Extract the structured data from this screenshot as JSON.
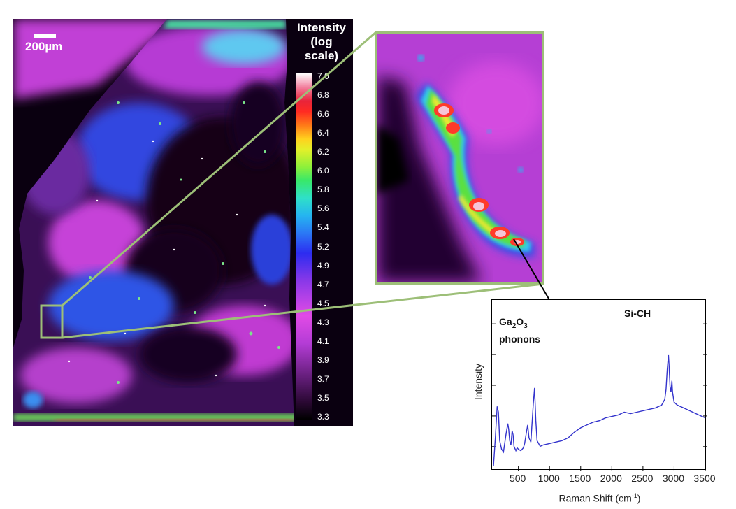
{
  "map": {
    "scalebar_label": "200µm",
    "colorbar": {
      "title_lines": [
        "Intensity",
        "(log",
        "scale)"
      ],
      "ticks": [
        "7.0",
        "6.8",
        "6.6",
        "6.4",
        "6.2",
        "6.0",
        "5.8",
        "5.6",
        "5.4",
        "5.2",
        "4.9",
        "4.7",
        "4.5",
        "4.3",
        "4.1",
        "3.9",
        "3.7",
        "3.5",
        "3.3"
      ]
    },
    "zoom_outline_color": "#9dbf78",
    "colors": {
      "background": "#050008",
      "magenta": "#c43ad0",
      "blue": "#2f45e8",
      "cyan": "#32c8f0",
      "green": "#55e03c",
      "red": "#ff2a22"
    }
  },
  "chart_data": {
    "type": "line",
    "title": "",
    "xlabel": "Raman Shift (cm-1)",
    "ylabel": "Intensity",
    "x_ticks": [
      500,
      1000,
      1500,
      2000,
      2500,
      3000,
      3500
    ],
    "xlim": [
      100,
      3500
    ],
    "ylim": [
      0,
      1
    ],
    "series_color": "#3333cc",
    "annotations": [
      {
        "label_main": "Ga",
        "sub1": "2",
        "mid": "O",
        "sub2": "3",
        "line2": "phonons"
      },
      {
        "label": "Si-CH"
      }
    ],
    "series": [
      {
        "x": [
          100,
          130,
          160,
          180,
          200,
          230,
          260,
          300,
          330,
          345,
          360,
          380,
          400,
          415,
          430,
          460,
          480,
          500,
          540,
          580,
          600,
          630,
          650,
          670,
          700,
          740,
          760,
          780,
          800,
          850,
          900,
          1000,
          1100,
          1200,
          1300,
          1400,
          1500,
          1600,
          1700,
          1800,
          1900,
          2000,
          2100,
          2200,
          2300,
          2400,
          2500,
          2600,
          2700,
          2800,
          2850,
          2870,
          2890,
          2910,
          2920,
          2935,
          2950,
          2965,
          2975,
          3000,
          3050,
          3100,
          3200,
          3300,
          3400,
          3500
        ],
        "y": [
          0.0,
          0.2,
          0.42,
          0.38,
          0.18,
          0.12,
          0.1,
          0.22,
          0.3,
          0.26,
          0.18,
          0.15,
          0.25,
          0.22,
          0.14,
          0.11,
          0.13,
          0.12,
          0.11,
          0.13,
          0.16,
          0.24,
          0.29,
          0.2,
          0.17,
          0.44,
          0.55,
          0.32,
          0.18,
          0.14,
          0.15,
          0.16,
          0.17,
          0.18,
          0.2,
          0.24,
          0.27,
          0.29,
          0.31,
          0.32,
          0.34,
          0.35,
          0.36,
          0.38,
          0.37,
          0.38,
          0.39,
          0.4,
          0.41,
          0.43,
          0.47,
          0.54,
          0.68,
          0.78,
          0.7,
          0.56,
          0.52,
          0.6,
          0.52,
          0.45,
          0.43,
          0.42,
          0.4,
          0.38,
          0.36,
          0.34
        ]
      }
    ]
  }
}
